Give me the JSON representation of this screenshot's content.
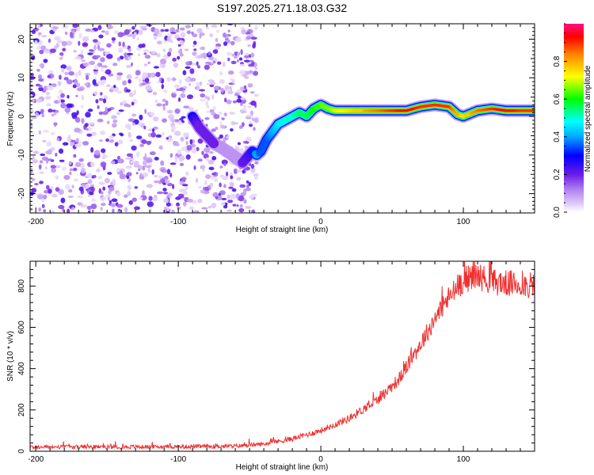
{
  "figure_title": "S197.2025.271.18.03.G32",
  "chart_data": [
    {
      "type": "heatmap",
      "title": "S197.2025.271.18.03.G32",
      "xlabel": "Height of straight line (km)",
      "ylabel": "Frequency (Hz)",
      "xlim": [
        -204,
        150
      ],
      "ylim": [
        -25,
        24
      ],
      "xticks": [
        -200,
        -100,
        0,
        100
      ],
      "yticks": [
        -20,
        -10,
        0,
        10,
        20
      ],
      "colorbar": {
        "label": "Normalized spectral amplitude",
        "range": [
          0,
          1
        ],
        "ticks": [
          0.0,
          0.2,
          0.4,
          0.6,
          0.8
        ]
      },
      "noise_region": {
        "x_range": [
          -204,
          -45
        ],
        "y_range": [
          -25,
          24
        ],
        "amplitude_range": [
          0.03,
          0.25
        ]
      },
      "ridge": [
        {
          "x": -90,
          "y": 0,
          "a": 0.3
        },
        {
          "x": -85,
          "y": -3,
          "a": 0.2
        },
        {
          "x": -80,
          "y": -5,
          "a": 0.2
        },
        {
          "x": -75,
          "y": -7,
          "a": 0.2
        },
        {
          "x": -70,
          "y": -8,
          "a": 0.15
        },
        {
          "x": -62,
          "y": -10,
          "a": 0.15
        },
        {
          "x": -55,
          "y": -12,
          "a": 0.2
        },
        {
          "x": -48,
          "y": -9,
          "a": 0.25
        },
        {
          "x": -45,
          "y": -10,
          "a": 0.45
        },
        {
          "x": -42,
          "y": -9,
          "a": 0.35
        },
        {
          "x": -38,
          "y": -6,
          "a": 0.35
        },
        {
          "x": -34,
          "y": -4,
          "a": 0.4
        },
        {
          "x": -30,
          "y": -2,
          "a": 0.45
        },
        {
          "x": -25,
          "y": -1,
          "a": 0.5
        },
        {
          "x": -20,
          "y": 0,
          "a": 0.5
        },
        {
          "x": -15,
          "y": 1,
          "a": 0.55
        },
        {
          "x": -10,
          "y": 0,
          "a": 0.55
        },
        {
          "x": -5,
          "y": 2,
          "a": 0.6
        },
        {
          "x": 0,
          "y": 3,
          "a": 0.65
        },
        {
          "x": 5,
          "y": 2,
          "a": 0.65
        },
        {
          "x": 10,
          "y": 1.5,
          "a": 0.7
        },
        {
          "x": 20,
          "y": 1.5,
          "a": 0.75
        },
        {
          "x": 30,
          "y": 1.5,
          "a": 0.8
        },
        {
          "x": 40,
          "y": 1.5,
          "a": 0.85
        },
        {
          "x": 50,
          "y": 1.5,
          "a": 0.9
        },
        {
          "x": 60,
          "y": 1.5,
          "a": 0.95
        },
        {
          "x": 70,
          "y": 2.5,
          "a": 0.9
        },
        {
          "x": 80,
          "y": 3,
          "a": 0.9
        },
        {
          "x": 90,
          "y": 2.5,
          "a": 0.9
        },
        {
          "x": 96,
          "y": 0.5,
          "a": 0.8
        },
        {
          "x": 100,
          "y": 0,
          "a": 0.75
        },
        {
          "x": 110,
          "y": 1.5,
          "a": 0.85
        },
        {
          "x": 120,
          "y": 2,
          "a": 0.9
        },
        {
          "x": 130,
          "y": 1.5,
          "a": 0.95
        },
        {
          "x": 140,
          "y": 1.5,
          "a": 0.9
        },
        {
          "x": 150,
          "y": 1.5,
          "a": 0.9
        }
      ]
    },
    {
      "type": "line",
      "xlabel": "Height of straight line (km)",
      "ylabel": "SNR (10 * v/v)",
      "xlim": [
        -204,
        150
      ],
      "ylim": [
        0,
        920
      ],
      "xticks": [
        -200,
        -100,
        0,
        100
      ],
      "yticks": [
        0,
        200,
        400,
        600,
        800
      ],
      "line_color": "#f03030",
      "trend": [
        {
          "x": -204,
          "y": 20
        },
        {
          "x": -100,
          "y": 22
        },
        {
          "x": -60,
          "y": 25
        },
        {
          "x": -40,
          "y": 35
        },
        {
          "x": -20,
          "y": 60
        },
        {
          "x": 0,
          "y": 100
        },
        {
          "x": 20,
          "y": 160
        },
        {
          "x": 40,
          "y": 250
        },
        {
          "x": 55,
          "y": 350
        },
        {
          "x": 70,
          "y": 520
        },
        {
          "x": 85,
          "y": 700
        },
        {
          "x": 100,
          "y": 830
        },
        {
          "x": 110,
          "y": 850
        },
        {
          "x": 120,
          "y": 820
        },
        {
          "x": 150,
          "y": 800
        }
      ]
    }
  ]
}
